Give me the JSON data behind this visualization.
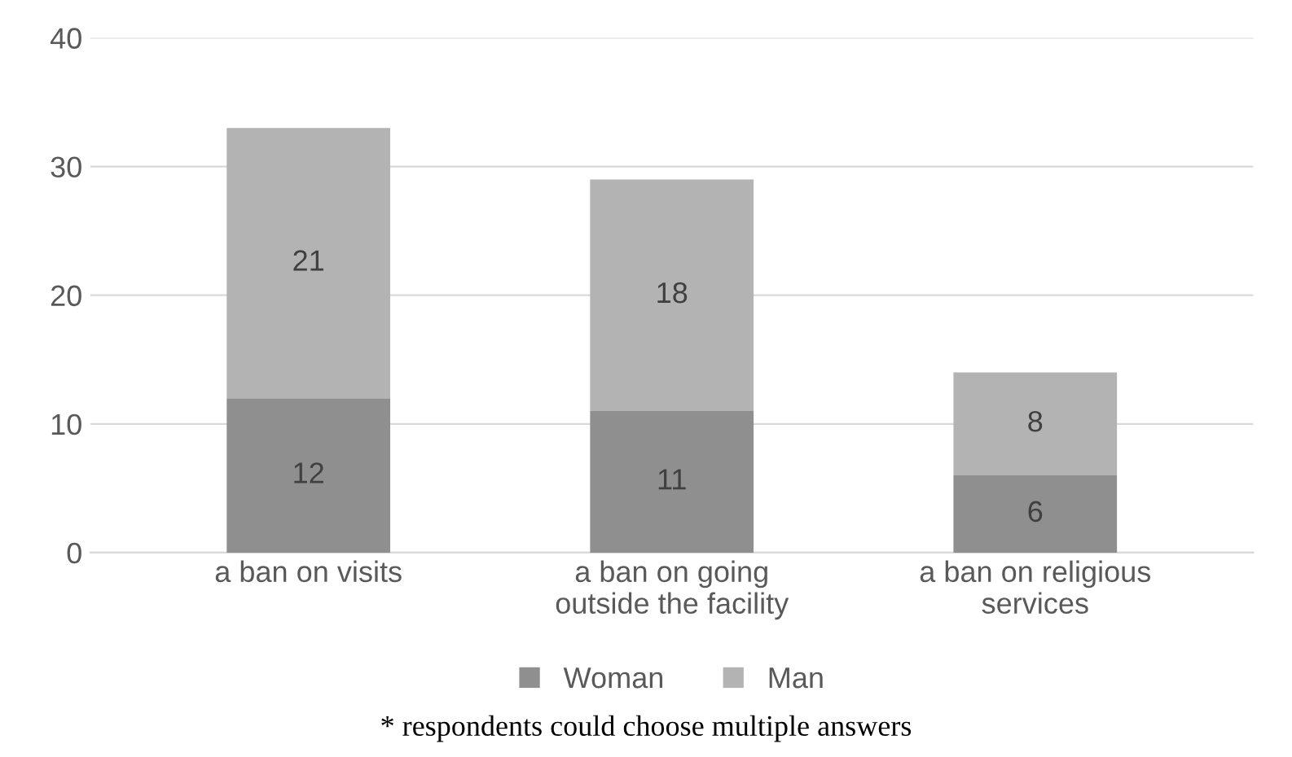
{
  "chart_data": {
    "type": "bar",
    "stacked": true,
    "categories": [
      "a ban on visits",
      "a ban on going\noutside the facility",
      "a ban on religious\nservices"
    ],
    "series": [
      {
        "name": "Woman",
        "color": "#8f8f8f",
        "values": [
          12,
          11,
          6
        ]
      },
      {
        "name": "Man",
        "color": "#b3b3b3",
        "values": [
          21,
          18,
          8
        ]
      }
    ],
    "ylim": [
      0,
      40
    ],
    "yticks": [
      0,
      10,
      20,
      30,
      40
    ],
    "grid": "y",
    "legend": "bottom",
    "data_labels": true,
    "annotations": [
      "* respondents could choose multiple answers"
    ]
  }
}
